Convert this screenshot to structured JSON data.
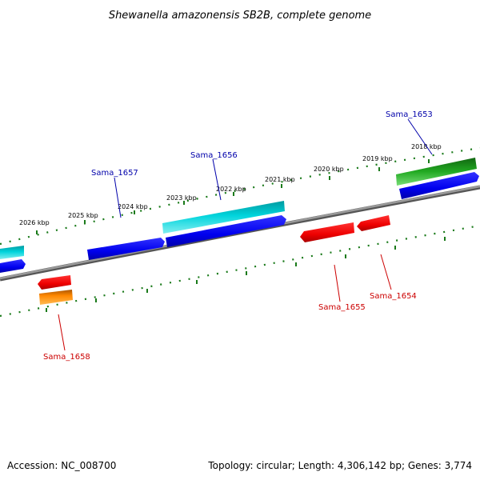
{
  "title": "Shewanella amazonensis SB2B, complete genome",
  "footer": {
    "accession": "Accession: NC_008700",
    "summary": "Topology: circular; Length: 4,306,142 bp; Genes: 3,774"
  },
  "colors": {
    "forward_label": "#0000aa",
    "reverse_label": "#cc0000",
    "backbone": "#808080",
    "ticks": "#1a7a1a",
    "blue": "#0000ee",
    "cyan": "#00c8d0",
    "red": "#ee0000",
    "orange": "#ff8800",
    "green": "#22aa22"
  },
  "tick_labels": [
    "2026 kbp",
    "2025 kbp",
    "2024 kbp",
    "2023 kbp",
    "2022 kbp",
    "2021 kbp",
    "2020 kbp",
    "2019 kbp",
    "2018 kbp"
  ],
  "gene_labels": {
    "sama_1653": "Sama_1653",
    "sama_1654": "Sama_1654",
    "sama_1655": "Sama_1655",
    "sama_1656": "Sama_1656",
    "sama_1657": "Sama_1657",
    "sama_1658": "Sama_1658"
  }
}
